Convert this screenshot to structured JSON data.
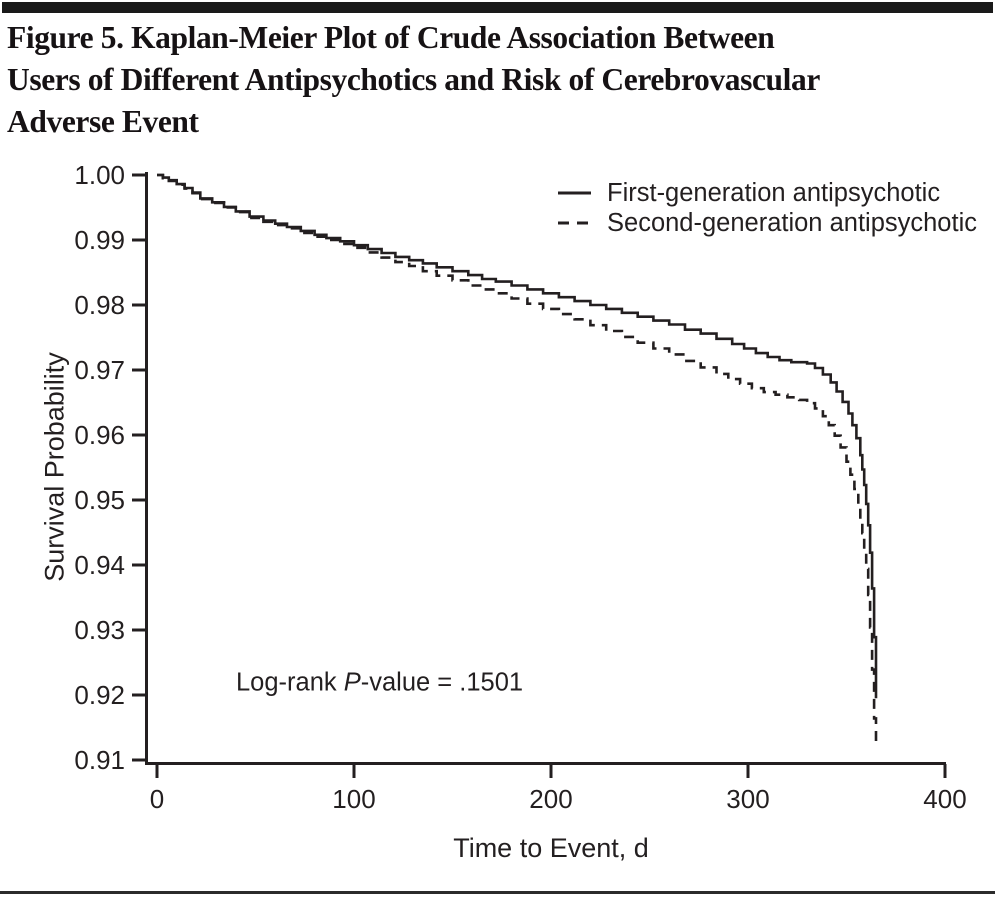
{
  "figure": {
    "title_lines": [
      "Figure 5. Kaplan-Meier Plot of Crude Association Between",
      "Users of Different Antipsychotics and Risk of Cerebrovascular",
      "Adverse Event"
    ]
  },
  "colors": {
    "line": "#231f20",
    "text": "#231f20",
    "top_rule": "#1a1a1a",
    "bottom_rule": "#2b2b2b"
  },
  "chart_data": {
    "type": "line",
    "subtype": "kaplan-meier-step",
    "title": "",
    "xlabel": "Time to Event, d",
    "ylabel": "Survival Probability",
    "xlim": [
      0,
      400
    ],
    "ylim": [
      0.91,
      1.0
    ],
    "grid": false,
    "x_ticks": [
      {
        "value": 0,
        "label": "0"
      },
      {
        "value": 100,
        "label": "100"
      },
      {
        "value": 200,
        "label": "200"
      },
      {
        "value": 300,
        "label": "300"
      },
      {
        "value": 400,
        "label": "400"
      }
    ],
    "y_ticks": [
      {
        "value": 1.0,
        "label": "1.00"
      },
      {
        "value": 0.99,
        "label": "0.99"
      },
      {
        "value": 0.98,
        "label": "0.98"
      },
      {
        "value": 0.97,
        "label": "0.97"
      },
      {
        "value": 0.96,
        "label": "0.96"
      },
      {
        "value": 0.95,
        "label": "0.95"
      },
      {
        "value": 0.94,
        "label": "0.94"
      },
      {
        "value": 0.93,
        "label": "0.93"
      },
      {
        "value": 0.92,
        "label": "0.92"
      },
      {
        "value": 0.91,
        "label": "0.91"
      }
    ],
    "legend": {
      "position": "top-right",
      "entries": [
        {
          "name": "First-generation antipsychotic",
          "style": "solid"
        },
        {
          "name": "Second-generation antipsychotic",
          "style": "dashed"
        }
      ]
    },
    "annotation": {
      "text_before": "Log-rank ",
      "italic": "P",
      "text_after": "-value = .1501",
      "full_text": "Log-rank P-value = .1501"
    },
    "series": [
      {
        "name": "First-generation antipsychotic",
        "style": "solid",
        "points": [
          [
            0,
            1.0
          ],
          [
            3,
            0.9996
          ],
          [
            6,
            0.9992
          ],
          [
            10,
            0.9986
          ],
          [
            14,
            0.998
          ],
          [
            18,
            0.9973
          ],
          [
            22,
            0.9964
          ],
          [
            28,
            0.9958
          ],
          [
            34,
            0.9951
          ],
          [
            40,
            0.9944
          ],
          [
            47,
            0.9936
          ],
          [
            54,
            0.993
          ],
          [
            60,
            0.9925
          ],
          [
            66,
            0.992
          ],
          [
            73,
            0.9914
          ],
          [
            80,
            0.9908
          ],
          [
            86,
            0.9903
          ],
          [
            93,
            0.9898
          ],
          [
            100,
            0.9892
          ],
          [
            107,
            0.9886
          ],
          [
            114,
            0.988
          ],
          [
            121,
            0.9874
          ],
          [
            128,
            0.9869
          ],
          [
            135,
            0.9864
          ],
          [
            142,
            0.9858
          ],
          [
            150,
            0.9852
          ],
          [
            158,
            0.9846
          ],
          [
            165,
            0.984
          ],
          [
            172,
            0.9836
          ],
          [
            180,
            0.983
          ],
          [
            188,
            0.9824
          ],
          [
            196,
            0.9818
          ],
          [
            204,
            0.9812
          ],
          [
            212,
            0.9806
          ],
          [
            220,
            0.98
          ],
          [
            228,
            0.9794
          ],
          [
            236,
            0.9788
          ],
          [
            244,
            0.9782
          ],
          [
            252,
            0.9776
          ],
          [
            260,
            0.977
          ],
          [
            268,
            0.9762
          ],
          [
            276,
            0.9756
          ],
          [
            284,
            0.9748
          ],
          [
            292,
            0.974
          ],
          [
            298,
            0.9733
          ],
          [
            304,
            0.9726
          ],
          [
            310,
            0.972
          ],
          [
            316,
            0.9715
          ],
          [
            322,
            0.9712
          ],
          [
            330,
            0.971
          ],
          [
            334,
            0.9703
          ],
          [
            338,
            0.9693
          ],
          [
            342,
            0.9681
          ],
          [
            345,
            0.9667
          ],
          [
            348,
            0.9651
          ],
          [
            351,
            0.9633
          ],
          [
            353,
            0.9615
          ],
          [
            355,
            0.9595
          ],
          [
            357,
            0.9569
          ],
          [
            358,
            0.9547
          ],
          [
            359,
            0.9523
          ],
          [
            360,
            0.9494
          ],
          [
            361,
            0.9461
          ],
          [
            362,
            0.9419
          ],
          [
            363,
            0.9364
          ],
          [
            364,
            0.9289
          ],
          [
            365,
            0.9195
          ]
        ]
      },
      {
        "name": "Second-generation antipsychotic",
        "style": "dashed",
        "points": [
          [
            0,
            1.0
          ],
          [
            3,
            0.9995
          ],
          [
            6,
            0.9991
          ],
          [
            10,
            0.9985
          ],
          [
            14,
            0.9979
          ],
          [
            18,
            0.9972
          ],
          [
            22,
            0.9963
          ],
          [
            28,
            0.9957
          ],
          [
            34,
            0.995
          ],
          [
            40,
            0.9943
          ],
          [
            47,
            0.9934
          ],
          [
            54,
            0.9928
          ],
          [
            60,
            0.9923
          ],
          [
            66,
            0.9918
          ],
          [
            73,
            0.9911
          ],
          [
            80,
            0.9905
          ],
          [
            86,
            0.99
          ],
          [
            93,
            0.9894
          ],
          [
            100,
            0.9888
          ],
          [
            107,
            0.9881
          ],
          [
            114,
            0.9873
          ],
          [
            121,
            0.9866
          ],
          [
            128,
            0.986
          ],
          [
            135,
            0.9852
          ],
          [
            142,
            0.9845
          ],
          [
            150,
            0.9838
          ],
          [
            158,
            0.983
          ],
          [
            165,
            0.9824
          ],
          [
            172,
            0.9818
          ],
          [
            180,
            0.981
          ],
          [
            188,
            0.9802
          ],
          [
            196,
            0.9794
          ],
          [
            204,
            0.9786
          ],
          [
            212,
            0.9778
          ],
          [
            220,
            0.9769
          ],
          [
            228,
            0.976
          ],
          [
            236,
            0.9751
          ],
          [
            244,
            0.9742
          ],
          [
            252,
            0.9733
          ],
          [
            260,
            0.9724
          ],
          [
            268,
            0.9714
          ],
          [
            276,
            0.9704
          ],
          [
            284,
            0.9694
          ],
          [
            290,
            0.9686
          ],
          [
            296,
            0.9679
          ],
          [
            302,
            0.9672
          ],
          [
            308,
            0.9666
          ],
          [
            314,
            0.9662
          ],
          [
            320,
            0.9658
          ],
          [
            326,
            0.9654
          ],
          [
            330,
            0.9649
          ],
          [
            334,
            0.9641
          ],
          [
            338,
            0.9629
          ],
          [
            341,
            0.9615
          ],
          [
            344,
            0.9599
          ],
          [
            347,
            0.9581
          ],
          [
            350,
            0.9559
          ],
          [
            352,
            0.9539
          ],
          [
            354,
            0.9517
          ],
          [
            356,
            0.9489
          ],
          [
            357,
            0.9471
          ],
          [
            358,
            0.9449
          ],
          [
            359,
            0.9424
          ],
          [
            360,
            0.9394
          ],
          [
            361,
            0.9354
          ],
          [
            362,
            0.9304
          ],
          [
            363,
            0.9239
          ],
          [
            364,
            0.9164
          ],
          [
            365,
            0.912
          ]
        ]
      }
    ]
  }
}
